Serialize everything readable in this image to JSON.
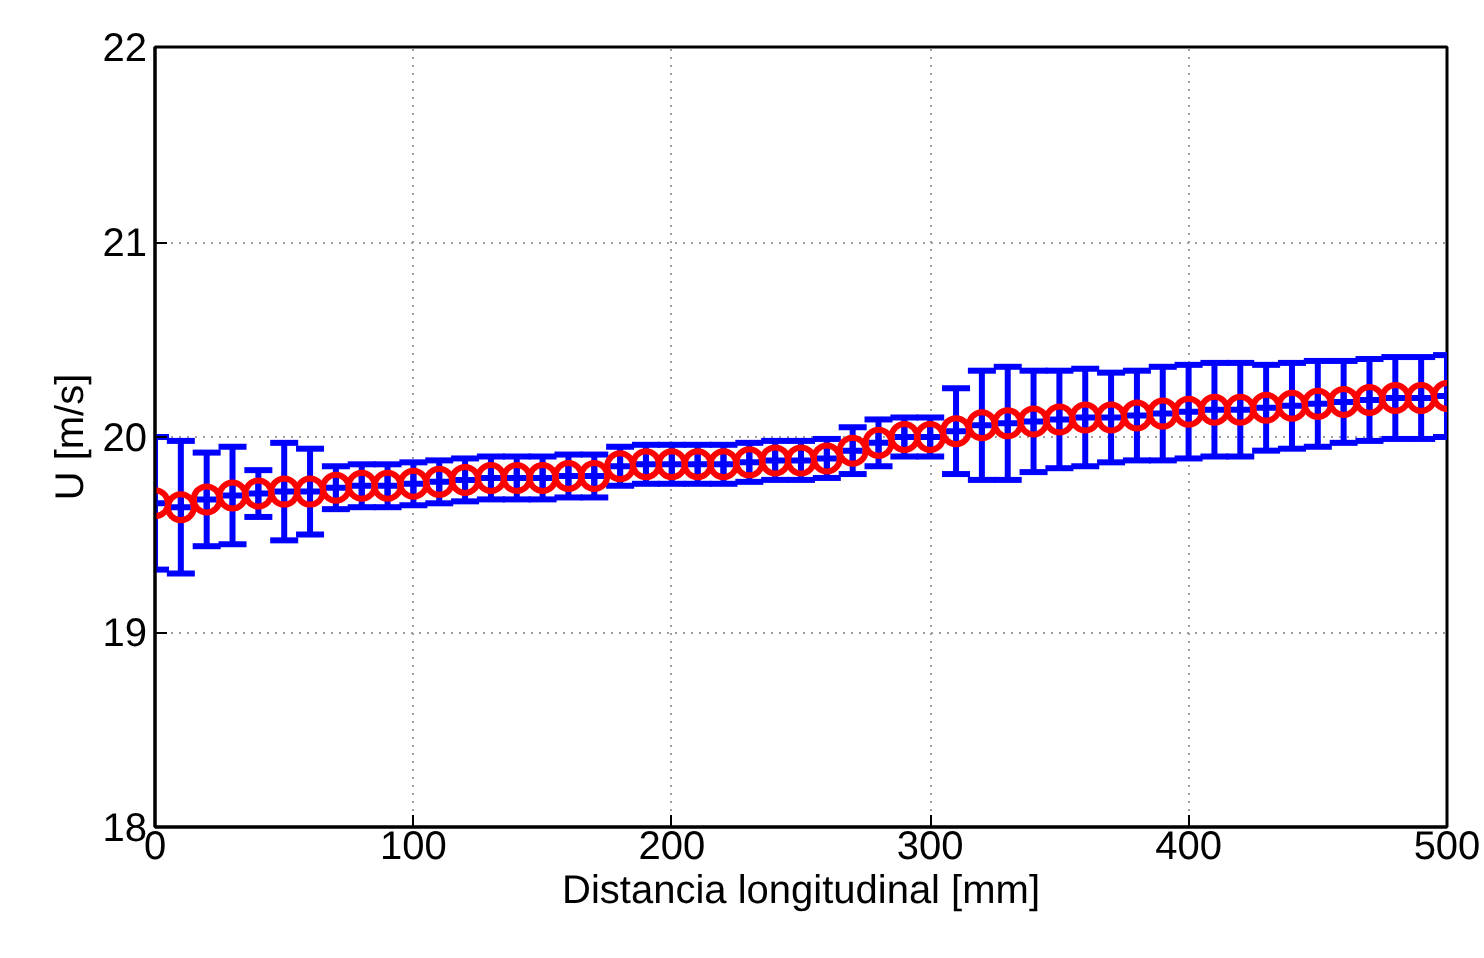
{
  "chart_data": {
    "type": "scatter",
    "xlabel": "Distancia longitudinal [mm]",
    "ylabel": "U [m/s]",
    "x": [
      0,
      10,
      20,
      30,
      40,
      50,
      60,
      70,
      80,
      90,
      100,
      110,
      120,
      130,
      140,
      150,
      160,
      170,
      180,
      190,
      200,
      210,
      220,
      230,
      240,
      250,
      260,
      270,
      280,
      290,
      300,
      310,
      320,
      330,
      340,
      350,
      360,
      370,
      380,
      390,
      400,
      410,
      420,
      430,
      440,
      450,
      460,
      470,
      480,
      490,
      500
    ],
    "series": [
      {
        "color": "#0000ff",
        "marker": "cross",
        "values": [
          19.66,
          19.64,
          19.68,
          19.7,
          19.71,
          19.72,
          19.72,
          19.74,
          19.75,
          19.75,
          19.76,
          19.77,
          19.78,
          19.79,
          19.79,
          19.79,
          19.8,
          19.8,
          19.85,
          19.86,
          19.86,
          19.86,
          19.86,
          19.87,
          19.88,
          19.88,
          19.89,
          19.93,
          19.97,
          20.0,
          20.0,
          20.03,
          20.06,
          20.07,
          20.08,
          20.09,
          20.1,
          20.1,
          20.11,
          20.12,
          20.13,
          20.14,
          20.14,
          20.15,
          20.16,
          20.17,
          20.18,
          20.19,
          20.2,
          20.2,
          20.21
        ],
        "errors": [
          0.34,
          0.34,
          0.24,
          0.25,
          0.12,
          0.25,
          0.22,
          0.11,
          0.11,
          0.11,
          0.11,
          0.11,
          0.11,
          0.11,
          0.11,
          0.11,
          0.11,
          0.11,
          0.1,
          0.1,
          0.1,
          0.1,
          0.1,
          0.1,
          0.1,
          0.1,
          0.1,
          0.12,
          0.12,
          0.1,
          0.1,
          0.22,
          0.28,
          0.29,
          0.26,
          0.25,
          0.25,
          0.23,
          0.23,
          0.24,
          0.24,
          0.24,
          0.24,
          0.22,
          0.22,
          0.22,
          0.21,
          0.21,
          0.21,
          0.21,
          0.21
        ]
      },
      {
        "color": "#ff0000",
        "marker": "circle",
        "values": [
          19.66,
          19.64,
          19.68,
          19.7,
          19.71,
          19.72,
          19.72,
          19.74,
          19.75,
          19.75,
          19.76,
          19.77,
          19.78,
          19.79,
          19.79,
          19.79,
          19.8,
          19.8,
          19.85,
          19.86,
          19.86,
          19.86,
          19.86,
          19.87,
          19.88,
          19.88,
          19.89,
          19.93,
          19.97,
          20.0,
          20.0,
          20.03,
          20.06,
          20.07,
          20.08,
          20.09,
          20.1,
          20.1,
          20.11,
          20.12,
          20.13,
          20.14,
          20.14,
          20.15,
          20.16,
          20.17,
          20.18,
          20.19,
          20.2,
          20.2,
          20.21
        ]
      }
    ],
    "xlim": [
      0,
      500
    ],
    "xticks": [
      0,
      100,
      200,
      300,
      400,
      500
    ],
    "ylim": [
      18,
      22
    ],
    "yticks": [
      18,
      19,
      20,
      21,
      22
    ],
    "grid": true
  }
}
